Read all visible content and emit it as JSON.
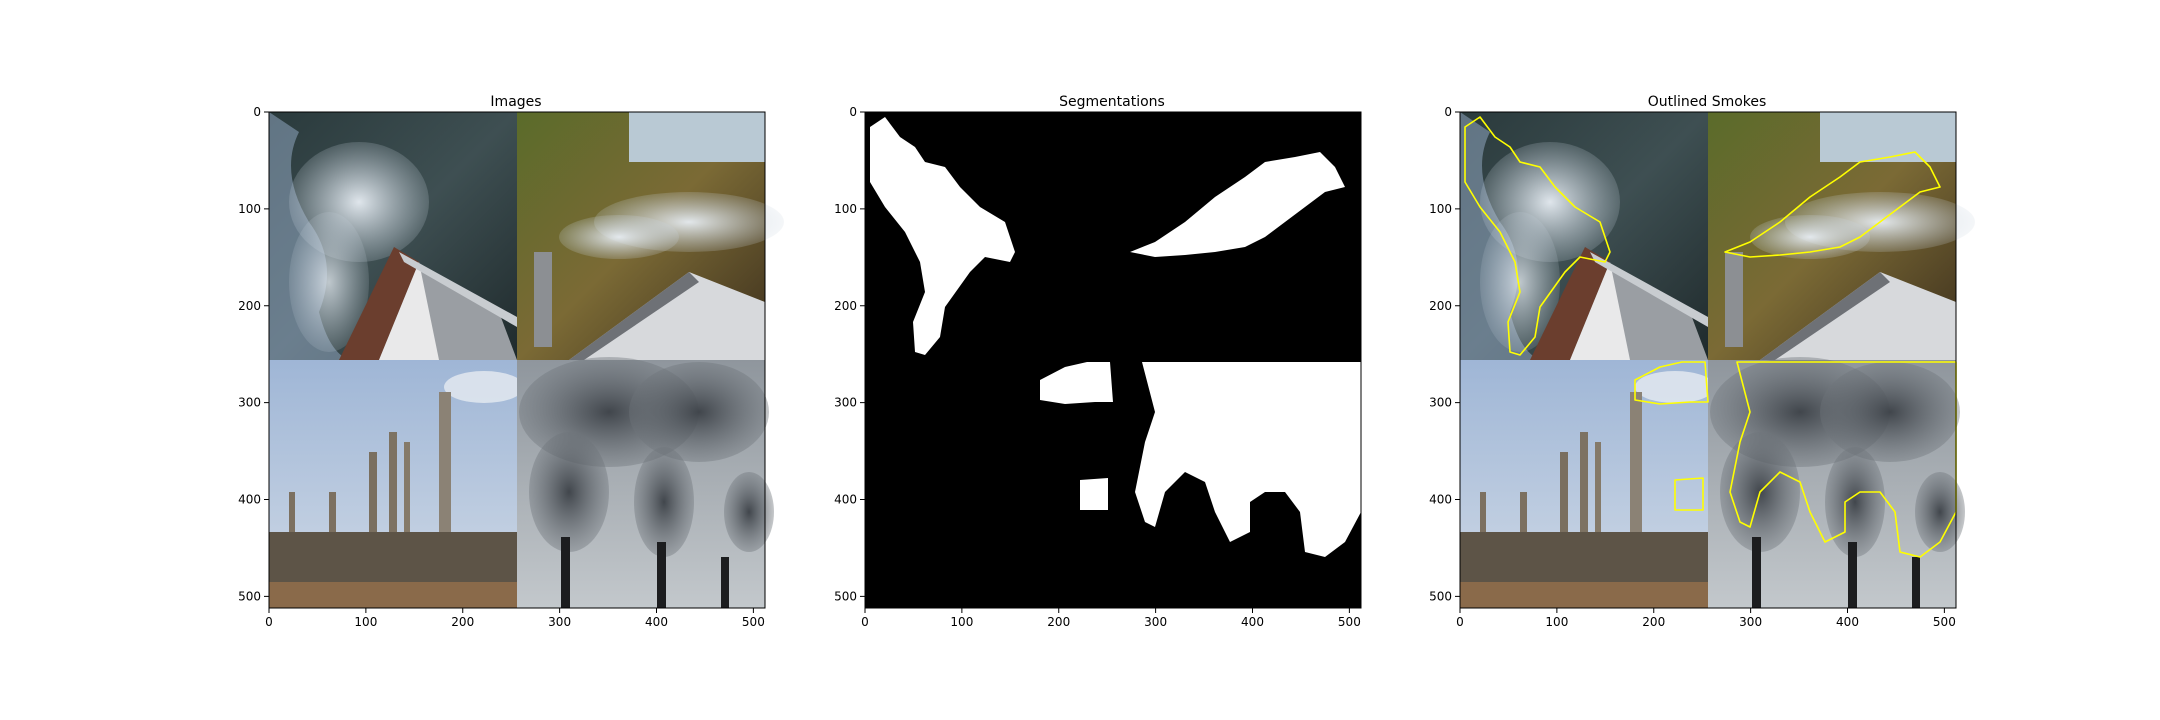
{
  "panels": [
    {
      "id": "images",
      "title": "Images"
    },
    {
      "id": "segmentations",
      "title": "Segmentations"
    },
    {
      "id": "outlined",
      "title": "Outlined Smokes"
    }
  ],
  "axes": {
    "xticks": [
      "0",
      "100",
      "200",
      "300",
      "400",
      "500"
    ],
    "yticks": [
      "0",
      "100",
      "200",
      "300",
      "400",
      "500"
    ],
    "extent": [
      0,
      512
    ]
  },
  "colors": {
    "outline": "#ffff00",
    "mask_fg": "#ffffff",
    "mask_bg": "#000000"
  }
}
